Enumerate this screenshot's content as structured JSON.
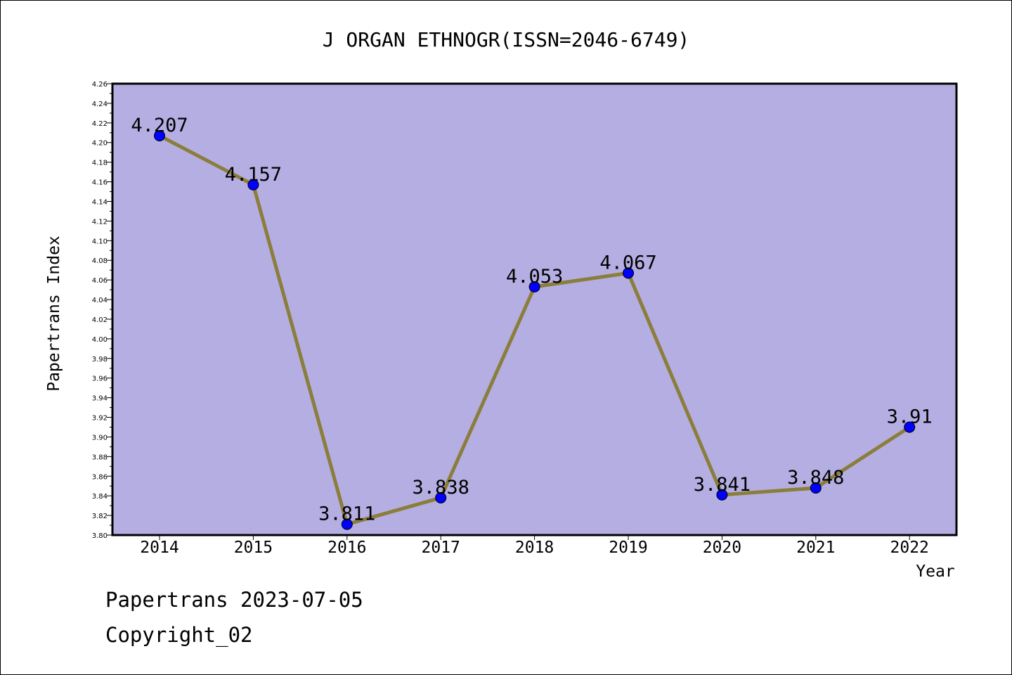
{
  "chart_data": {
    "type": "line",
    "title": "J ORGAN ETHNOGR(ISSN=2046-6749)",
    "xlabel": "Year",
    "ylabel": "Papertrans Index",
    "x": [
      "2014",
      "2015",
      "2016",
      "2017",
      "2018",
      "2019",
      "2020",
      "2021",
      "2022"
    ],
    "series": [
      {
        "values": [
          4.207,
          4.157,
          3.811,
          3.838,
          4.053,
          4.067,
          3.841,
          3.848,
          3.91
        ],
        "labels": [
          "4.207",
          "4.157",
          "3.811",
          "3.838",
          "4.053",
          "4.067",
          "3.841",
          "3.848",
          "3.91"
        ]
      }
    ],
    "ylim": [
      3.8,
      4.26
    ],
    "yticks": [
      "3.80",
      "3.82",
      "3.84",
      "3.86",
      "3.88",
      "3.90",
      "3.92",
      "3.94",
      "3.96",
      "3.98",
      "4.00",
      "4.02",
      "4.04",
      "4.06",
      "4.08",
      "4.10",
      "4.12",
      "4.14",
      "4.16",
      "4.18",
      "4.20",
      "4.22",
      "4.24",
      "4.26"
    ],
    "grid": false,
    "colors": {
      "plot_bg": "#b4aee2",
      "line": "#8b7d3a",
      "marker": "#0000ff"
    }
  },
  "footer": {
    "line1": "Papertrans 2023-07-05",
    "line2": "Copyright_02"
  }
}
